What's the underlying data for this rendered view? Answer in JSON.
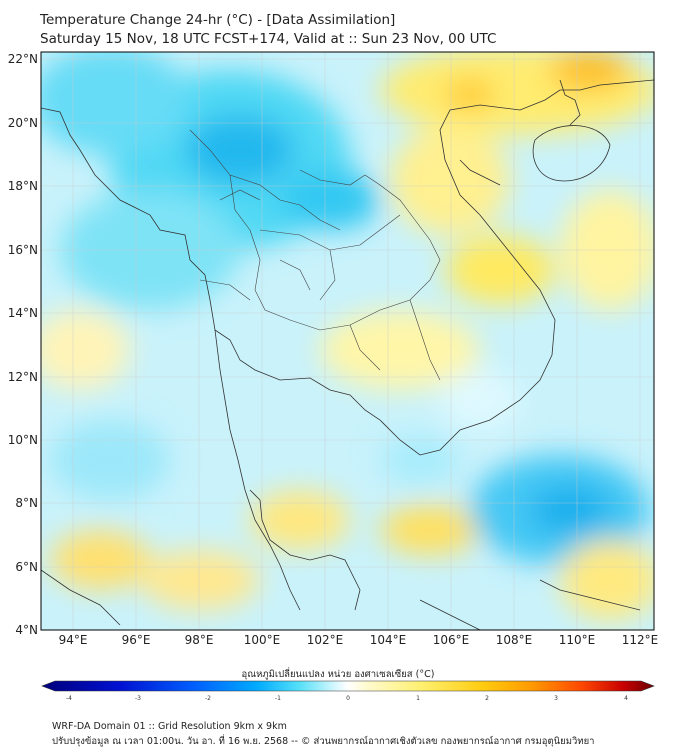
{
  "title_line1": "Temperature Change 24-hr (°C) - [Data Assimilation]",
  "title_line2": "Saturday 15 Nov, 18 UTC FCST+174, Valid at :: Sun 23 Nov, 00 UTC",
  "lat_labels": [
    "22°N",
    "20°N",
    "18°N",
    "16°N",
    "14°N",
    "12°N",
    "10°N",
    "8°N",
    "6°N",
    "4°N"
  ],
  "lon_labels": [
    "94°E",
    "96°E",
    "98°E",
    "100°E",
    "102°E",
    "104°E",
    "106°E",
    "108°E",
    "110°E",
    "112°E"
  ],
  "colorbar": {
    "label": "อุณหภูมิเปลี่ยนแปลง หน่วย องศาเซลเซียส (°C)",
    "ticks": [
      "-4",
      "-3",
      "-2",
      "-1",
      "0",
      "1",
      "2",
      "3",
      "4"
    ],
    "colors": [
      "#00007a",
      "#0000cc",
      "#0040ff",
      "#00a0ff",
      "#33d6f5",
      "#9ceeff",
      "#e6fbff",
      "#ffffff",
      "#fffbd9",
      "#fff27a",
      "#ffd21a",
      "#ffa500",
      "#ff6a00",
      "#e60000",
      "#7a0000"
    ]
  },
  "footer_line1": "WRF-DA Domain 01 :: Grid Resolution 9km x 9km",
  "footer_line2": "ปรับปรุงข้อมูล ณ เวลา 01:00น. วัน อา. ที่ 16 พ.ย. 2568 -- © ส่วนพยากรณ์อากาศเชิงตัวเลข กองพยากรณ์อากาศ กรมอุตุนิยมวิทยา"
}
